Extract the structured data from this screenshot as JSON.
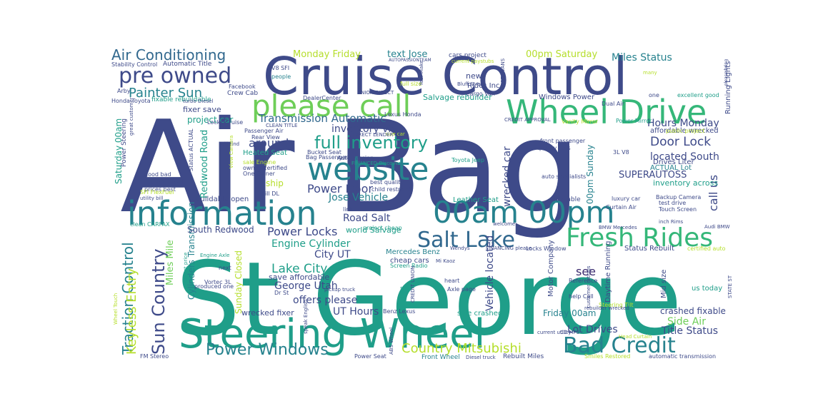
{
  "palette": {
    "dark_purple": "#3b2a6e",
    "indigo": "#3e4a89",
    "blue": "#31688e",
    "teal": "#26828e",
    "sea_green": "#1f9e89",
    "green": "#35b779",
    "light_green": "#6ece58",
    "yellow_green": "#b5de2b",
    "yellow": "#fde725"
  },
  "words": [
    {
      "text": "Air Bag",
      "color": "indigo",
      "weight": "xl"
    },
    {
      "text": "St George",
      "color": "sea_green",
      "weight": "xl"
    },
    {
      "text": "Cruise Control",
      "color": "indigo",
      "weight": "l"
    },
    {
      "text": "Steering Wheel",
      "color": "sea_green",
      "weight": "l"
    },
    {
      "text": "information",
      "color": "teal",
      "weight": "l"
    },
    {
      "text": "Wheel Drive",
      "color": "green",
      "weight": "l"
    },
    {
      "text": "please call",
      "color": "light_green",
      "weight": "l"
    },
    {
      "text": "website",
      "color": "teal",
      "weight": "l"
    },
    {
      "text": "00am 00pm",
      "color": "teal",
      "weight": "l"
    },
    {
      "text": "Fresh Rides",
      "color": "green",
      "weight": "l"
    },
    {
      "text": "Salt Lake",
      "color": "blue",
      "weight": "m"
    },
    {
      "text": "Bad Credit",
      "color": "teal",
      "weight": "m"
    },
    {
      "text": "pre owned",
      "color": "indigo",
      "weight": "m"
    },
    {
      "text": "Power Windows",
      "color": "teal",
      "weight": "m"
    },
    {
      "text": "Sun Country",
      "color": "indigo",
      "weight": "m"
    },
    {
      "text": "Traction Control",
      "color": "teal",
      "weight": "m"
    },
    {
      "text": "full inventory",
      "color": "sea_green",
      "weight": "m"
    },
    {
      "text": "Air Conditioning",
      "color": "blue",
      "weight": "m"
    },
    {
      "text": "Country Mitsubishi",
      "color": "yellow_green",
      "weight": "m"
    },
    {
      "text": "Painter Sun",
      "color": "teal",
      "weight": "s"
    },
    {
      "text": "Keyless Entry",
      "color": "yellow_green",
      "weight": "s"
    },
    {
      "text": "Power Locks",
      "color": "indigo",
      "weight": "s"
    },
    {
      "text": "Lake City",
      "color": "sea_green",
      "weight": "s"
    },
    {
      "text": "Door Lock",
      "color": "indigo",
      "weight": "s"
    },
    {
      "text": "Power Door",
      "color": "indigo",
      "weight": "s"
    },
    {
      "text": "call us",
      "color": "indigo",
      "weight": "s"
    },
    {
      "text": "Transmission Automatic",
      "color": "blue",
      "weight": "s"
    },
    {
      "text": "Miles Status",
      "color": "teal",
      "weight": "s"
    },
    {
      "text": "Monday Friday",
      "color": "yellow_green",
      "weight": "s"
    },
    {
      "text": "text Jose",
      "color": "teal",
      "weight": "s"
    },
    {
      "text": "00pm Saturday",
      "color": "yellow_green",
      "weight": "s"
    },
    {
      "text": "around",
      "color": "indigo",
      "weight": "s"
    },
    {
      "text": "located South",
      "color": "indigo",
      "weight": "s"
    },
    {
      "text": "Hours Monday",
      "color": "indigo",
      "weight": "s"
    },
    {
      "text": "Side Air",
      "color": "light_green",
      "weight": "s"
    },
    {
      "text": "Title Status",
      "color": "indigo",
      "weight": "s"
    },
    {
      "text": "Lot Drives",
      "color": "indigo",
      "weight": "s"
    },
    {
      "text": "UT Hours",
      "color": "indigo",
      "weight": "s"
    },
    {
      "text": "offers please",
      "color": "indigo",
      "weight": "s"
    },
    {
      "text": "George Utah",
      "color": "indigo",
      "weight": "s"
    },
    {
      "text": "Engine Cylinder",
      "color": "sea_green",
      "weight": "s"
    },
    {
      "text": "City UT",
      "color": "indigo",
      "weight": "s"
    },
    {
      "text": "see",
      "color": "dark_purple",
      "weight": "s"
    },
    {
      "text": "Jose Vehicle",
      "color": "teal",
      "weight": "s"
    },
    {
      "text": "Road Salt",
      "color": "indigo",
      "weight": "s"
    },
    {
      "text": "inventory visit",
      "color": "indigo",
      "weight": "s"
    },
    {
      "text": "wrecked car",
      "color": "indigo",
      "weight": "s"
    },
    {
      "text": "Vehicle located",
      "color": "indigo",
      "weight": "s"
    },
    {
      "text": "SUPERAUTOSS",
      "color": "indigo",
      "weight": "xs"
    },
    {
      "text": "Saturday 00am",
      "color": "sea_green",
      "weight": "xs"
    },
    {
      "text": "Redwood Road",
      "color": "sea_green",
      "weight": "xs"
    },
    {
      "text": "Cylinders Transmission",
      "color": "teal",
      "weight": "xs"
    },
    {
      "text": "Miles Mile",
      "color": "light_green",
      "weight": "xs"
    },
    {
      "text": "South Redwood",
      "color": "indigo",
      "weight": "xs"
    },
    {
      "text": "00pm Sunday",
      "color": "teal",
      "weight": "xs"
    },
    {
      "text": "Sunday Closed",
      "color": "yellow_green",
      "weight": "xs"
    },
    {
      "text": "fixer save",
      "color": "indigo",
      "weight": "xs"
    },
    {
      "text": "project car",
      "color": "sea_green",
      "weight": "xs"
    },
    {
      "text": "Salvage rebuilder",
      "color": "sea_green",
      "weight": "xs"
    },
    {
      "text": "new",
      "color": "indigo",
      "weight": "xs"
    },
    {
      "text": "Rides Inc",
      "color": "indigo",
      "weight": "xs"
    },
    {
      "text": "Windows Power",
      "color": "indigo",
      "weight": "xs"
    },
    {
      "text": "inventory across",
      "color": "sea_green",
      "weight": "xs"
    },
    {
      "text": "affordable wrecked",
      "color": "indigo",
      "weight": "xs"
    },
    {
      "text": "ACTUAL Lot",
      "color": "teal",
      "weight": "xs"
    },
    {
      "text": "Friday 00am",
      "color": "teal",
      "weight": "xs"
    },
    {
      "text": "crashed fixable",
      "color": "indigo",
      "weight": "xs"
    },
    {
      "text": "wrecked fixer",
      "color": "indigo",
      "weight": "xs"
    },
    {
      "text": "save affordable",
      "color": "indigo",
      "weight": "xs"
    },
    {
      "text": "world Salvage",
      "color": "sea_green",
      "weight": "xs"
    },
    {
      "text": "rebuildable open",
      "color": "indigo",
      "weight": "xs"
    },
    {
      "text": "ship",
      "color": "yellow_green",
      "weight": "xs"
    },
    {
      "text": "Mercedes Benz",
      "color": "teal",
      "weight": "xs"
    },
    {
      "text": "cheap cars",
      "color": "indigo",
      "weight": "xs"
    },
    {
      "text": "Leather Seat",
      "color": "sea_green",
      "weight": "xs"
    },
    {
      "text": "sale crashed",
      "color": "sea_green",
      "weight": "xs"
    },
    {
      "text": "us today",
      "color": "sea_green",
      "weight": "xs"
    },
    {
      "text": "Drives Liter",
      "color": "indigo",
      "weight": "xs"
    },
    {
      "text": "Status Rebuilt",
      "color": "indigo",
      "weight": "xs"
    },
    {
      "text": "Mid size",
      "color": "indigo",
      "weight": "xs"
    },
    {
      "text": "Daytime Running",
      "color": "indigo",
      "weight": "xs"
    },
    {
      "text": "Motor Company",
      "color": "indigo",
      "weight": "xs"
    },
    {
      "text": "Heated Seat",
      "color": "sea_green",
      "weight": "xs"
    },
    {
      "text": "Running Lights",
      "color": "indigo",
      "weight": "xs"
    },
    {
      "text": "Cargo Van",
      "color": "indigo",
      "weight": "xs"
    },
    {
      "text": "Front Wheel",
      "color": "teal",
      "weight": "xs"
    },
    {
      "text": "Rebuilt Miles",
      "color": "indigo",
      "weight": "xs"
    },
    {
      "text": "Power Seat",
      "color": "indigo",
      "weight": "xs"
    },
    {
      "text": "FM Stereo",
      "color": "indigo",
      "weight": "xs"
    },
    {
      "text": "Diesel truck",
      "color": "indigo",
      "weight": "xs"
    },
    {
      "text": "Engine Axle",
      "color": "sea_green",
      "weight": "xs"
    },
    {
      "text": "Jeep Diesel",
      "color": "indigo",
      "weight": "xs"
    },
    {
      "text": "good bad",
      "color": "indigo",
      "weight": "xs"
    },
    {
      "text": "prices best",
      "color": "indigo",
      "weight": "xs"
    },
    {
      "text": "fixable rebuildable",
      "color": "sea_green",
      "weight": "xs"
    },
    {
      "text": "Automatic Title",
      "color": "indigo",
      "weight": "xs"
    },
    {
      "text": "Stability Control",
      "color": "indigo",
      "weight": "xs"
    },
    {
      "text": "Honda Toyota",
      "color": "indigo",
      "weight": "xs"
    },
    {
      "text": "Crew Cab",
      "color": "indigo",
      "weight": "xs"
    },
    {
      "text": "Arby",
      "color": "indigo",
      "weight": "xs"
    },
    {
      "text": "Facebook",
      "color": "indigo",
      "weight": "xs"
    },
    {
      "text": "V8 SFI",
      "color": "indigo",
      "weight": "xs"
    },
    {
      "text": "people",
      "color": "teal",
      "weight": "xs"
    },
    {
      "text": "Locks Cruise",
      "color": "indigo",
      "weight": "xs"
    },
    {
      "text": "Passenger Air",
      "color": "indigo",
      "weight": "xs"
    },
    {
      "text": "Rear View",
      "color": "indigo",
      "weight": "xs"
    },
    {
      "text": "sale Engine",
      "color": "yellow_green",
      "weight": "xs"
    },
    {
      "text": "owned certified",
      "color": "indigo",
      "weight": "xs"
    },
    {
      "text": "One Owner",
      "color": "indigo",
      "weight": "xs"
    },
    {
      "text": "bill DL",
      "color": "indigo",
      "weight": "xs"
    },
    {
      "text": "Lexus Honda",
      "color": "indigo",
      "weight": "xs"
    },
    {
      "text": "Bucket Seat",
      "color": "indigo",
      "weight": "xs"
    },
    {
      "text": "Bag Passenger",
      "color": "indigo",
      "weight": "xs"
    },
    {
      "text": "Auto Passion",
      "color": "indigo",
      "weight": "xs"
    },
    {
      "text": "Toyota Jeep",
      "color": "sea_green",
      "weight": "xs"
    },
    {
      "text": "DealerCenter",
      "color": "indigo",
      "weight": "xs"
    },
    {
      "text": "Dual Air",
      "color": "indigo",
      "weight": "xs"
    },
    {
      "text": "excellent good",
      "color": "sea_green",
      "weight": "xs"
    },
    {
      "text": "Power Mirror",
      "color": "sea_green",
      "weight": "xs"
    },
    {
      "text": "Vanity Mirror",
      "color": "yellow_green",
      "weight": "xs"
    },
    {
      "text": "public project",
      "color": "yellow_green",
      "weight": "xs"
    },
    {
      "text": "front passenger",
      "color": "indigo",
      "weight": "xs"
    },
    {
      "text": "quality cars",
      "color": "indigo",
      "weight": "xs"
    },
    {
      "text": "3L V8",
      "color": "indigo",
      "weight": "xs"
    },
    {
      "text": "auto specialists",
      "color": "indigo",
      "weight": "xs"
    },
    {
      "text": "Backup Camera",
      "color": "indigo",
      "weight": "xs"
    },
    {
      "text": "test drive",
      "color": "indigo",
      "weight": "xs"
    },
    {
      "text": "Touch Screen",
      "color": "indigo",
      "weight": "xs"
    },
    {
      "text": "luxury car",
      "color": "indigo",
      "weight": "xs"
    },
    {
      "text": "Curtain Air",
      "color": "indigo",
      "weight": "xs"
    },
    {
      "text": "available",
      "color": "indigo",
      "weight": "xs"
    },
    {
      "text": "best quality",
      "color": "indigo",
      "weight": "xs"
    },
    {
      "text": "child restraint",
      "color": "indigo",
      "weight": "xs"
    },
    {
      "text": "link",
      "color": "indigo",
      "weight": "xs"
    },
    {
      "text": "project cheap",
      "color": "sea_green",
      "weight": "xs"
    },
    {
      "text": "Locks Window",
      "color": "indigo",
      "weight": "xs"
    },
    {
      "text": "help Call",
      "color": "indigo",
      "weight": "xs"
    },
    {
      "text": "Reference",
      "color": "indigo",
      "weight": "xs"
    },
    {
      "text": "Steering Tilt",
      "color": "yellow_green",
      "weight": "xs"
    },
    {
      "text": "certified auto",
      "color": "yellow_green",
      "weight": "xs"
    },
    {
      "text": "Audi BMW",
      "color": "indigo",
      "weight": "xs"
    },
    {
      "text": "BMW Mercedes",
      "color": "indigo",
      "weight": "xs"
    },
    {
      "text": "welcome",
      "color": "indigo",
      "weight": "xs"
    },
    {
      "text": "heart",
      "color": "indigo",
      "weight": "xs"
    },
    {
      "text": "Axle page",
      "color": "indigo",
      "weight": "xs"
    },
    {
      "text": "Benz Lexus",
      "color": "indigo",
      "weight": "xs"
    },
    {
      "text": "Screen Radio",
      "color": "sea_green",
      "weight": "xs"
    },
    {
      "text": "Dr St",
      "color": "indigo",
      "weight": "xs"
    },
    {
      "text": "produced one",
      "color": "indigo",
      "weight": "xs"
    },
    {
      "text": "Vortec 3L",
      "color": "indigo",
      "weight": "xs"
    },
    {
      "text": "next",
      "color": "indigo",
      "weight": "xs"
    },
    {
      "text": "Smiles Restored",
      "color": "yellow_green",
      "weight": "xs"
    },
    {
      "text": "automatic transmission",
      "color": "indigo",
      "weight": "xs"
    },
    {
      "text": "Head Curtain",
      "color": "yellow_green",
      "weight": "xs"
    },
    {
      "text": "current utility",
      "color": "indigo",
      "weight": "xs"
    },
    {
      "text": "CD MP3",
      "color": "indigo",
      "weight": "xs"
    },
    {
      "text": "STATE ST",
      "color": "indigo",
      "weight": "xs"
    },
    {
      "text": "clean CARFAX",
      "color": "sea_green",
      "weight": "xs"
    },
    {
      "text": "utility bill",
      "color": "indigo",
      "weight": "xs"
    },
    {
      "text": "SFI FlexFuel",
      "color": "yellow_green",
      "weight": "xs"
    },
    {
      "text": "will find",
      "color": "indigo",
      "weight": "xs"
    },
    {
      "text": "text",
      "color": "sea_green",
      "weight": "xs"
    },
    {
      "text": "full size",
      "color": "yellow_green",
      "weight": "xs"
    },
    {
      "text": "Year Make",
      "color": "indigo",
      "weight": "xs"
    },
    {
      "text": "CREDIT APPROVAL",
      "color": "indigo",
      "weight": "xs"
    },
    {
      "text": "ST EVANS",
      "color": "indigo",
      "weight": "xs"
    },
    {
      "text": "many",
      "color": "yellow_green",
      "weight": "xs"
    },
    {
      "text": "one",
      "color": "indigo",
      "weight": "xs"
    },
    {
      "text": "Bluff Street",
      "color": "indigo",
      "weight": "xs"
    },
    {
      "text": "current paystubs",
      "color": "yellow_green",
      "weight": "xs"
    },
    {
      "text": "cars project",
      "color": "indigo",
      "weight": "xs"
    },
    {
      "text": "AUTOPASSIONTEAM",
      "color": "indigo",
      "weight": "xs"
    },
    {
      "text": "please bring",
      "color": "indigo",
      "weight": "xs"
    },
    {
      "text": "Power Steering",
      "color": "indigo",
      "weight": "xs"
    },
    {
      "text": "Status ACTUAL",
      "color": "indigo",
      "weight": "xs"
    },
    {
      "text": "ABS Wheel",
      "color": "indigo",
      "weight": "xs"
    },
    {
      "text": "Wendys",
      "color": "indigo",
      "weight": "xs"
    },
    {
      "text": "Mi Kaoz",
      "color": "indigo",
      "weight": "xs"
    },
    {
      "text": "inch Rims",
      "color": "indigo",
      "weight": "xs"
    },
    {
      "text": "size car",
      "color": "yellow_green",
      "weight": "xs"
    },
    {
      "text": "customer ratings",
      "color": "indigo",
      "weight": "xs"
    },
    {
      "text": "DIRECT LENDER",
      "color": "indigo",
      "weight": "xs"
    },
    {
      "text": "FINANCED Discover",
      "color": "sea_green",
      "weight": "xs"
    },
    {
      "text": "CREDIT UNION",
      "color": "indigo",
      "weight": "xs"
    },
    {
      "text": "speak English",
      "color": "indigo",
      "weight": "xs"
    },
    {
      "text": "lowest price",
      "color": "sea_green",
      "weight": "xs"
    },
    {
      "text": "pickup truck",
      "color": "indigo",
      "weight": "xs"
    },
    {
      "text": "rebuilder wrecked",
      "color": "indigo",
      "weight": "xs"
    },
    {
      "text": "FINANCING please",
      "color": "indigo",
      "weight": "xs"
    },
    {
      "text": "turbo Diesel",
      "color": "indigo",
      "weight": "xs"
    },
    {
      "text": "UNION DIRECT",
      "color": "indigo",
      "weight": "xs"
    },
    {
      "text": "Wheel Touch",
      "color": "yellow_green",
      "weight": "xs"
    },
    {
      "text": "View Camera",
      "color": "yellow_green",
      "weight": "xs"
    },
    {
      "text": "great customer",
      "color": "indigo",
      "weight": "xs"
    },
    {
      "text": "CLEAN TITLE",
      "color": "indigo",
      "weight": "xs"
    },
    {
      "text": "AUTO FINANCED",
      "color": "indigo",
      "weight": "xs"
    },
    {
      "text": "rear seat",
      "color": "yellow_green",
      "weight": "xs"
    }
  ]
}
